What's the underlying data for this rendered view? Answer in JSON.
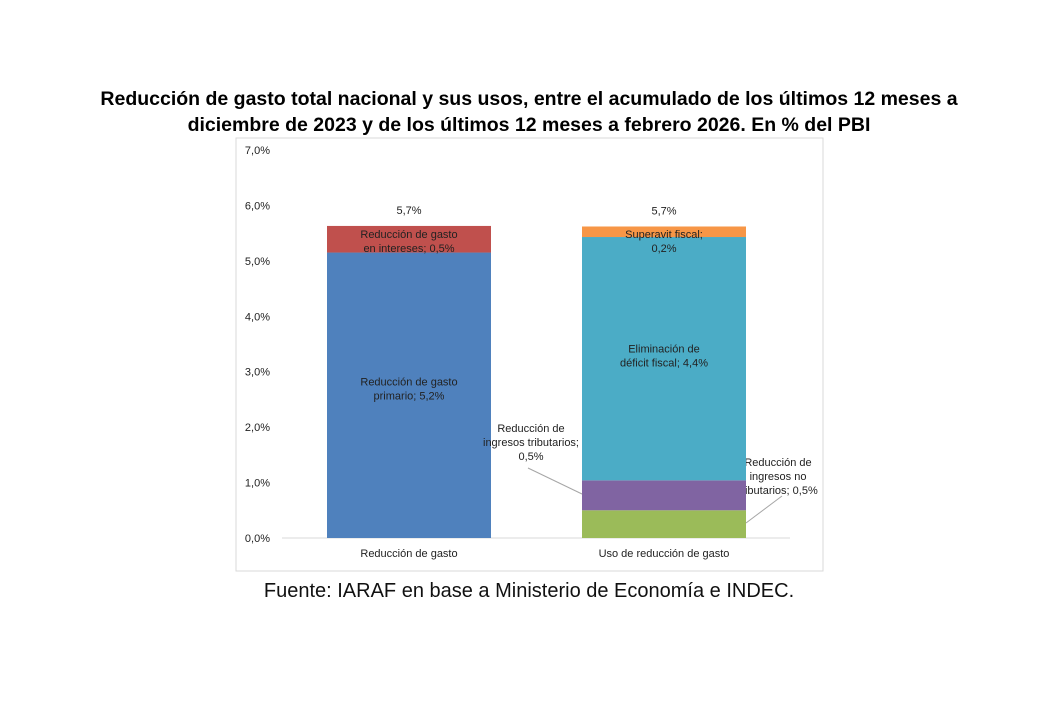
{
  "chart_data": {
    "type": "bar",
    "stacked": true,
    "title": "Reducción de gasto total nacional y sus usos, entre el acumulado de los últimos 12 meses a diciembre de 2023 y de los últimos 12 meses a febrero 2026. En % del PBI",
    "title_lines": [
      "Reducción de gasto total nacional y sus usos, entre el acumulado de los últimos 12 meses a",
      "diciembre de 2023 y de los últimos 12 meses a febrero 2026. En % del PBI"
    ],
    "xlabel": "",
    "ylabel": "",
    "ylim": [
      0,
      7
    ],
    "yticks": [
      "0,0%",
      "1,0%",
      "2,0%",
      "3,0%",
      "4,0%",
      "5,0%",
      "6,0%",
      "7,0%"
    ],
    "grid": false,
    "categories": [
      "Reducción de gasto",
      "Uso de reducción de gasto"
    ],
    "totals": [
      "5,7%",
      "5,7%"
    ],
    "bars": [
      {
        "category": "Reducción de gasto",
        "segments": [
          {
            "value": 5.15,
            "color": "#4f81bd",
            "label": [
              "Reducción de gasto",
              "primario; 5,2%"
            ]
          },
          {
            "value": 0.48,
            "color": "#c0504d",
            "label": [
              "Reducción de gasto",
              "en intereses; 0,5%"
            ]
          }
        ]
      },
      {
        "category": "Uso de reducción de gasto",
        "segments": [
          {
            "value": 0.5,
            "color": "#9bbb59",
            "label": [
              "Reducción de",
              "ingresos no",
              "tributarios; 0,5%"
            ]
          },
          {
            "value": 0.54,
            "color": "#8064a2",
            "label": [
              "Reducción de",
              "ingresos tributarios;",
              "0,5%"
            ]
          },
          {
            "value": 4.39,
            "color": "#4bacc6",
            "label": [
              "Eliminación de",
              "déficit fiscal; 4,4%"
            ]
          },
          {
            "value": 0.19,
            "color": "#f79646",
            "label": [
              "Superavit fiscal;",
              "0,2%"
            ]
          }
        ]
      }
    ]
  },
  "source": "Fuente: IARAF en base a Ministerio de Economía e INDEC."
}
